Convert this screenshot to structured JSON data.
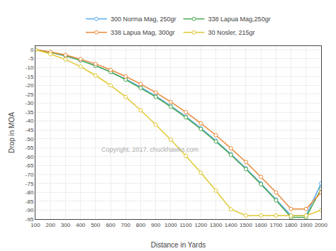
{
  "chart_data": {
    "type": "line",
    "xlabel": "Distance in Yards",
    "ylabel": "Drop in MOA",
    "xlim": [
      100,
      2000
    ],
    "ylim": [
      -95,
      2
    ],
    "xticks": [
      100,
      200,
      300,
      400,
      500,
      600,
      700,
      800,
      900,
      1000,
      1100,
      1200,
      1300,
      1400,
      1500,
      1600,
      1700,
      1800,
      1900,
      2000
    ],
    "yticks": [
      0,
      -5,
      -10,
      -15,
      -20,
      -25,
      -30,
      -35,
      -40,
      -45,
      -50,
      -55,
      -60,
      -65,
      -70,
      -75,
      -80,
      -85,
      -90,
      -95
    ],
    "grid": true,
    "legend": "top",
    "marker": "circle",
    "annotations": [
      "Copyright, 2017, chuckhawks.com"
    ],
    "x": [
      100,
      200,
      300,
      400,
      500,
      600,
      700,
      800,
      900,
      1000,
      1100,
      1200,
      1300,
      1400,
      1500,
      1600,
      1700,
      1800,
      1900,
      2000
    ],
    "series": [
      {
        "name": "300 Norma Mag, 250gr",
        "color": "#5aabf0",
        "values": [
          0.0,
          -1.5,
          -3.5,
          -6.0,
          -9.0,
          -12.5,
          -16.5,
          -21.0,
          -26.0,
          -31.5,
          -37.5,
          -44.0,
          -51.0,
          -58.5,
          -66.5,
          -75.0,
          -84.0,
          -93.0,
          -93.0,
          -75.0
        ]
      },
      {
        "name": "338 Lapua Mag,250gr",
        "color": "#4caa4c",
        "values": [
          0.0,
          -1.5,
          -3.5,
          -6.0,
          -9.0,
          -12.5,
          -16.8,
          -21.5,
          -26.5,
          -32.0,
          -38.0,
          -44.5,
          -51.5,
          -59.0,
          -67.0,
          -75.5,
          -84.5,
          -94.0,
          -94.0,
          -78.0
        ]
      },
      {
        "name": "338 Lapua Mag, 300gr",
        "color": "#e8893a",
        "values": [
          0.0,
          -1.3,
          -3.0,
          -5.3,
          -8.0,
          -11.3,
          -15.0,
          -19.3,
          -24.0,
          -29.3,
          -35.0,
          -41.3,
          -48.0,
          -55.3,
          -63.0,
          -71.3,
          -80.0,
          -89.3,
          -89.3,
          -80.0
        ]
      },
      {
        "name": "30 Nosler, 215gr",
        "color": "#e0c832",
        "values": [
          0.0,
          -2.5,
          -5.5,
          -9.5,
          -14.5,
          -20.0,
          -26.5,
          -34.0,
          -42.0,
          -50.5,
          -59.5,
          -69.0,
          -79.0,
          -89.5,
          -93.0,
          -93.0,
          -93.0,
          -93.0,
          -93.0,
          -90.0
        ]
      }
    ]
  }
}
